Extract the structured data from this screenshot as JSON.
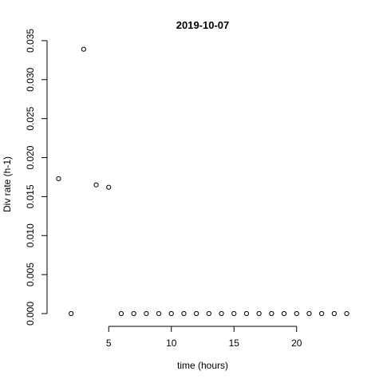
{
  "chart_data": {
    "type": "scatter",
    "title": "2019-10-07",
    "xlabel": "time (hours)",
    "ylabel": "Div rate (h-1)",
    "x_ticks": [
      5,
      10,
      15,
      20
    ],
    "y_ticks": [
      0.0,
      0.005,
      0.01,
      0.015,
      0.02,
      0.025,
      0.03,
      0.035
    ],
    "y_tick_labels": [
      "0.000",
      "0.005",
      "0.010",
      "0.015",
      "0.020",
      "0.025",
      "0.030",
      "0.035"
    ],
    "xlim": [
      0.08,
      24.92
    ],
    "ylim": [
      0,
      0.0353
    ],
    "grid": false,
    "legend": "none",
    "series": [
      {
        "x": [
          1,
          2,
          3,
          4,
          5,
          6,
          7,
          8,
          9,
          10,
          11,
          12,
          13,
          14,
          15,
          16,
          17,
          18,
          19,
          20,
          21,
          22,
          23,
          24
        ],
        "y": [
          0.0173,
          0,
          0.0339,
          0.0165,
          0.0162,
          0,
          0,
          0,
          0,
          0,
          0,
          0,
          0,
          0,
          0,
          0,
          0,
          0,
          0,
          0,
          0,
          0,
          0,
          0
        ]
      }
    ]
  }
}
